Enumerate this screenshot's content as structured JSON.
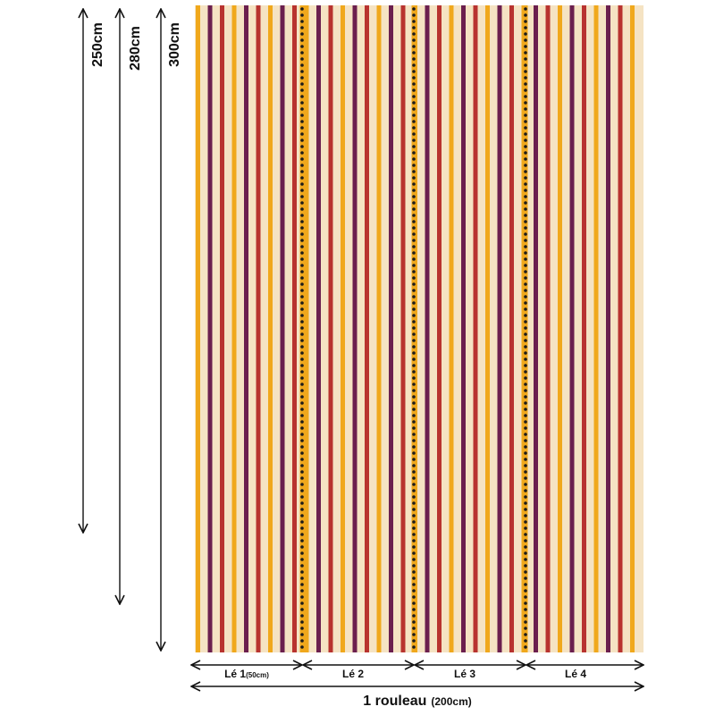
{
  "heights": [
    {
      "label": "250cm"
    },
    {
      "label": "280cm"
    },
    {
      "label": "300cm"
    }
  ],
  "strips": [
    {
      "label": "Lé 1",
      "note": "(50cm)"
    },
    {
      "label": "Lé 2",
      "note": ""
    },
    {
      "label": "Lé 3",
      "note": ""
    },
    {
      "label": "Lé 4",
      "note": ""
    }
  ],
  "roll": {
    "label": "1 rouleau",
    "note": "(200cm)"
  },
  "colors": {
    "cream": "#f5e3c3",
    "yellow": "#f0a81c",
    "purple": "#6b1f4e",
    "red": "#b8332f",
    "dot": "#1a1a1a",
    "line": "#111111"
  }
}
